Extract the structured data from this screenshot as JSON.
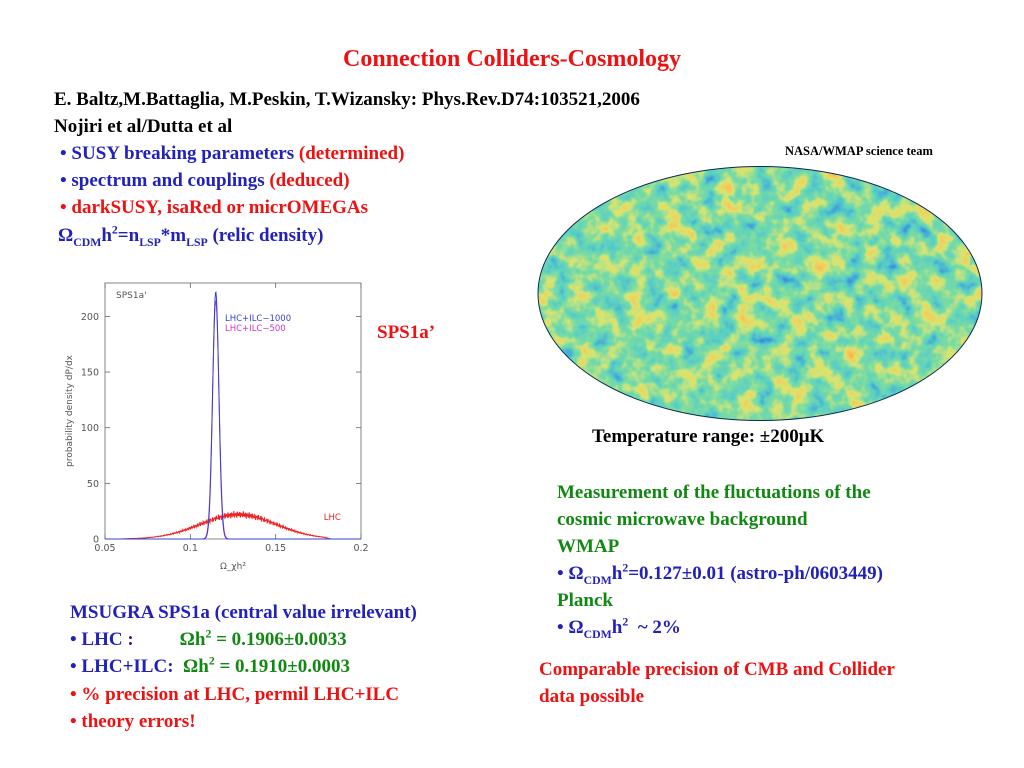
{
  "title": "Connection Colliders-Cosmology",
  "references": {
    "line1": "E. Baltz,M.Battaglia, M.Peskin, T.Wizansky: Phys.Rev.D74:103521,2006",
    "line2": "Nojiri et al/Dutta et al"
  },
  "bullets": [
    {
      "bullet": "•",
      "text": "SUSY breaking parameters",
      "note": "(determined)"
    },
    {
      "bullet": "•",
      "text": "spectrum and couplings",
      "note": "(deduced)"
    },
    {
      "bullet": "•",
      "text": "darkSUSY, isaRed or micrOMEGAs",
      "note": ""
    }
  ],
  "relic_formula": {
    "omega": "Ω",
    "sub_cdm": "CDM",
    "h": "h",
    "sup2": "2",
    "eq_n": "=n",
    "sub_lsp1": "LSP",
    "times_m": "*m",
    "sub_lsp2": "LSP",
    "label": "(relic density)"
  },
  "credit": "NASA/WMAP science team",
  "temperature_range": "Temperature range: ±200μK",
  "sps_label": "SPS1a’",
  "wmap_block": {
    "line1": "Measurement of the fluctuations of the",
    "line2": "cosmic microwave background",
    "wmap": "WMAP",
    "wmap_bullet": {
      "bullet": "•",
      "omega": "Ω",
      "sub": "CDM",
      "h": "h",
      "sup": "2",
      "value": "=0.127±0.01 (astro-ph/0603449)"
    },
    "planck": "Planck",
    "planck_bullet": {
      "bullet": "•",
      "omega": "Ω",
      "sub": "CDM",
      "h": "h",
      "sup": "2",
      "value": "~ 2%"
    }
  },
  "comparable": {
    "line1": "Comparable precision of CMB and Collider",
    "line2": "data possible"
  },
  "msugra": {
    "header": "MSUGRA SPS1a (central value irrelevant)",
    "lhc": {
      "bullet": "•",
      "label": "LHC :",
      "omega": "Ωh",
      "sup": "2",
      "value": "= 0.1906±0.0033"
    },
    "lhcilc": {
      "bullet": "•",
      "label": "LHC+ILC:",
      "omega": "Ωh",
      "sup": "2",
      "value": "= 0.1910±0.0003"
    },
    "percent": {
      "bullet": "•",
      "text": "% precision at LHC, permil LHC+ILC"
    },
    "theory": {
      "bullet": "•",
      "text": "theory errors!"
    }
  },
  "chart_data": {
    "type": "line",
    "title": "SPS1a'",
    "xlabel": "Ω_χh²",
    "ylabel": "probability density dP/dx",
    "xlim": [
      0.05,
      0.2
    ],
    "ylim": [
      0,
      230
    ],
    "x_ticks": [
      "0.05",
      "0.1",
      "0.15",
      "0.2"
    ],
    "y_ticks": [
      "0",
      "50",
      "100",
      "150",
      "200"
    ],
    "legend_placement": "top-right",
    "series": [
      {
        "name": "LHC+ILC−1000",
        "color": "#3344cc",
        "shape": "gaussian",
        "mean": 0.1149,
        "sigma": 0.0018,
        "peak": 222
      },
      {
        "name": "LHC+ILC−500",
        "color": "#cc33cc",
        "shape": "gaussian",
        "mean": 0.1149,
        "sigma": 0.0019,
        "peak": 214
      },
      {
        "name": "LHC",
        "color": "#ee2222",
        "shape": "gaussian",
        "mean": 0.128,
        "sigma": 0.022,
        "peak": 22
      }
    ],
    "annotations": [
      {
        "text": "LHC",
        "x": 0.17,
        "y": 17
      }
    ]
  },
  "colors": {
    "red": "#ee1111",
    "blue": "#2222bb",
    "green": "#118811"
  }
}
